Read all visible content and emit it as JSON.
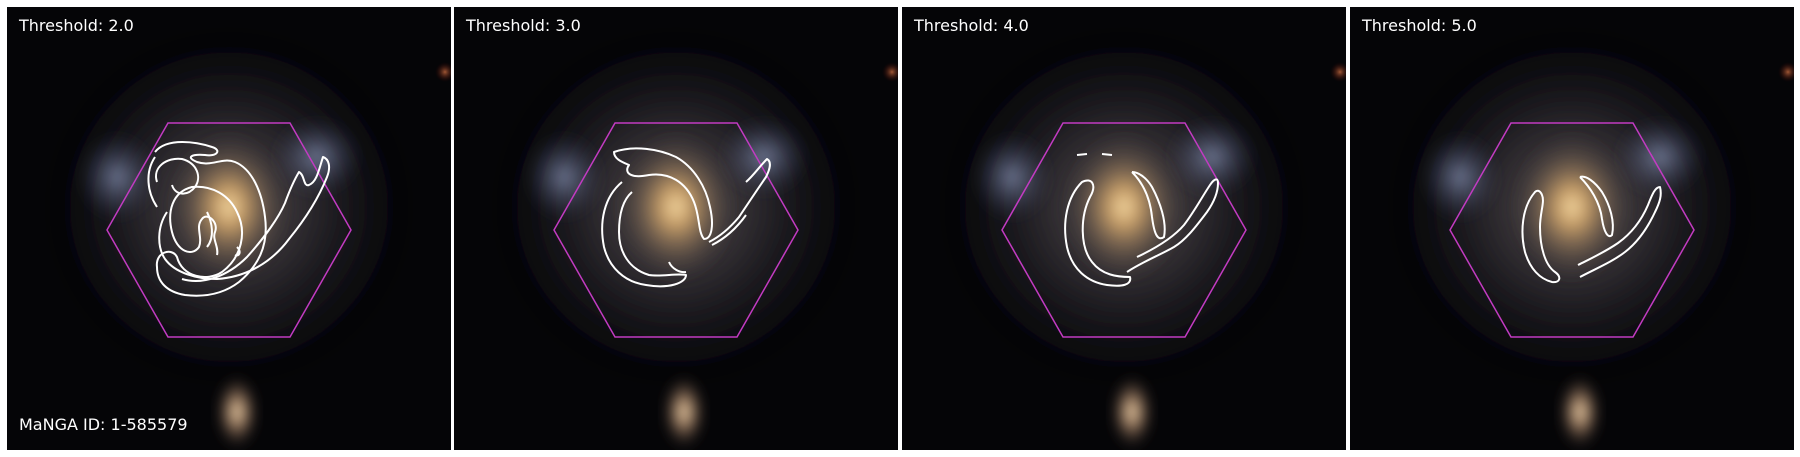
{
  "panels": [
    {
      "threshold_label": "Threshold: 2.0"
    },
    {
      "threshold_label": "Threshold: 3.0"
    },
    {
      "threshold_label": "Threshold: 4.0"
    },
    {
      "threshold_label": "Threshold: 5.0"
    }
  ],
  "manga_id_label": "MaNGA ID: 1-585579",
  "colors": {
    "hexagon": "#c23bc2",
    "contour": "#ffffff",
    "label_text": "#ffffff",
    "background": "#050507"
  }
}
